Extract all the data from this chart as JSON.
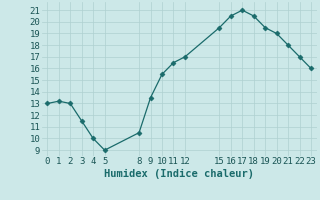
{
  "x": [
    0,
    1,
    2,
    3,
    4,
    5,
    8,
    9,
    10,
    11,
    12,
    15,
    16,
    17,
    18,
    19,
    20,
    21,
    22,
    23
  ],
  "y": [
    13,
    13.2,
    13,
    11.5,
    10,
    9,
    10.5,
    13.5,
    15.5,
    16.5,
    17,
    19.5,
    20.5,
    21,
    20.5,
    19.5,
    19,
    18,
    17,
    16
  ],
  "xticks": [
    0,
    1,
    2,
    3,
    4,
    5,
    8,
    9,
    10,
    11,
    12,
    15,
    16,
    17,
    18,
    19,
    20,
    21,
    22,
    23
  ],
  "yticks": [
    9,
    10,
    11,
    12,
    13,
    14,
    15,
    16,
    17,
    18,
    19,
    20,
    21
  ],
  "ylim": [
    8.5,
    21.7
  ],
  "xlim": [
    -0.5,
    23.5
  ],
  "xlabel": "Humidex (Indice chaleur)",
  "line_color": "#1a6b6b",
  "marker": "D",
  "marker_size": 2.5,
  "bg_color": "#cce8e8",
  "grid_color": "#afd0d0",
  "tick_fontsize": 6.5,
  "xlabel_fontsize": 7.5
}
